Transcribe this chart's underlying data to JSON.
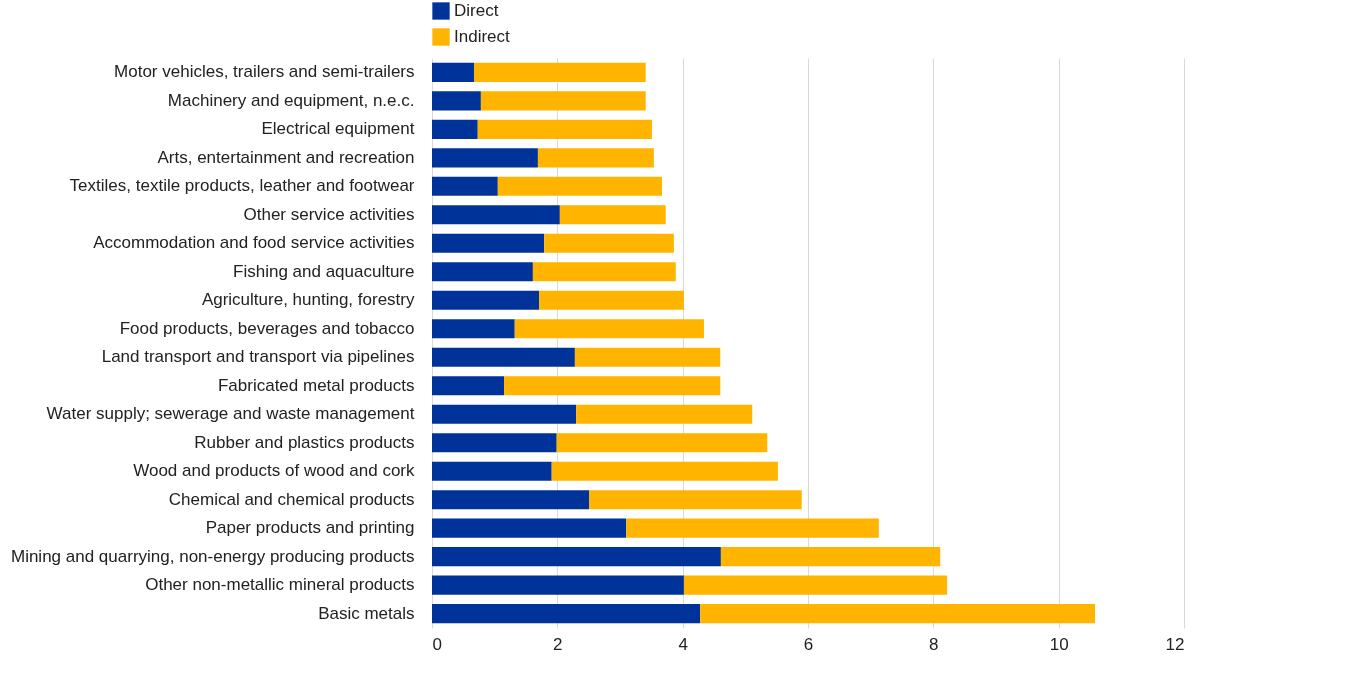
{
  "chart_data": {
    "type": "bar",
    "orientation": "horizontal",
    "stacked": true,
    "categories": [
      "Motor vehicles, trailers and semi-trailers",
      "Machinery and equipment, n.e.c.",
      "Electrical equipment",
      "Arts, entertainment and recreation",
      "Textiles, textile products, leather and footwear",
      "Other service activities",
      "Accommodation and food service activities",
      "Fishing and aquaculture",
      "Agriculture, hunting, forestry",
      "Food products, beverages and tobacco",
      "Land transport and transport via pipelines",
      "Fabricated metal products",
      "Water supply; sewerage and waste management ",
      "Rubber and plastics products",
      "Wood and products of wood and cork",
      "Chemical and chemical products",
      "Paper products and printing",
      "Mining and quarrying, non-energy producing products",
      "Other non-metallic mineral products",
      "Basic metals"
    ],
    "series": [
      {
        "name": "Direct",
        "color": "#003399",
        "values": [
          0.67,
          0.78,
          0.73,
          1.69,
          1.05,
          2.04,
          1.79,
          1.61,
          1.71,
          1.32,
          2.28,
          1.15,
          2.3,
          1.99,
          1.91,
          2.51,
          3.1,
          4.61,
          4.02,
          4.28
        ]
      },
      {
        "name": "Indirect",
        "color": "#ffb400",
        "values": [
          2.74,
          2.63,
          2.78,
          1.85,
          2.62,
          1.69,
          2.07,
          2.28,
          2.31,
          3.02,
          2.32,
          3.45,
          2.81,
          3.36,
          3.61,
          3.39,
          4.03,
          3.5,
          4.2,
          6.3
        ]
      }
    ],
    "xlim": [
      0,
      12
    ],
    "xticks": [
      0,
      2,
      4,
      6,
      8,
      10,
      12
    ],
    "grid": "x",
    "legend": "top"
  }
}
